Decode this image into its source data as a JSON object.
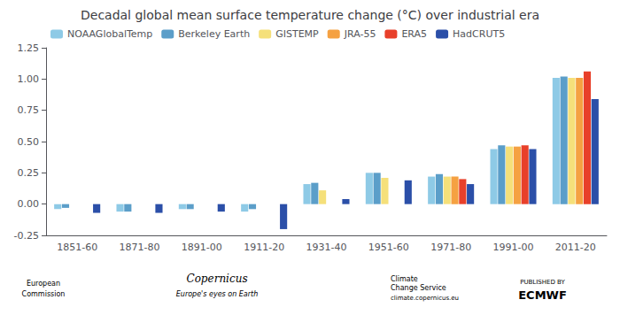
{
  "chart_data": {
    "type": "bar",
    "title": "Decadal global mean surface temperature change (°C) over industrial era",
    "categories": [
      "1851-60",
      "1871-80",
      "1891-00",
      "1911-20",
      "1931-40",
      "1951-60",
      "1971-80",
      "1991-00",
      "2011-20"
    ],
    "series": [
      {
        "name": "NOAAGlobalTemp",
        "color": "#8ecae6",
        "values": [
          -0.04,
          -0.06,
          -0.04,
          -0.06,
          0.16,
          0.25,
          0.22,
          0.44,
          1.01
        ]
      },
      {
        "name": "Berkeley Earth",
        "color": "#5b9ec9",
        "values": [
          -0.03,
          -0.06,
          -0.04,
          -0.04,
          0.17,
          0.25,
          0.24,
          0.47,
          1.02
        ]
      },
      {
        "name": "GISTEMP",
        "color": "#f5e07a",
        "values": [
          null,
          null,
          null,
          null,
          0.11,
          0.21,
          0.22,
          0.46,
          1.01
        ]
      },
      {
        "name": "JRA-55",
        "color": "#f5a142",
        "values": [
          null,
          null,
          null,
          null,
          null,
          null,
          0.22,
          0.46,
          1.01
        ]
      },
      {
        "name": "ERA5",
        "color": "#e8402a",
        "values": [
          null,
          null,
          null,
          null,
          null,
          null,
          0.2,
          0.47,
          1.06
        ]
      },
      {
        "name": "HadCRUT5",
        "color": "#2b4fa8",
        "values": [
          -0.07,
          -0.07,
          -0.06,
          -0.2,
          0.04,
          0.19,
          0.16,
          0.44,
          0.84
        ]
      }
    ],
    "ylim": [
      -0.25,
      1.25
    ],
    "yticks": [
      -0.25,
      {
        "value": 0,
        "label": "0.00"
      },
      0.25,
      {
        "value": 0.5,
        "label": "0.50"
      },
      0.75,
      {
        "value": 1,
        "label": "1.00"
      },
      1.25
    ],
    "grid": false,
    "legend": "upper left",
    "annotations": [
      "European",
      "Commission",
      "Copernicus",
      "Europe's eyes on Earth",
      "Climate",
      "Change Service",
      "climate.copernicus.eu",
      "PUBLISHED BY",
      "ECMWF"
    ]
  }
}
